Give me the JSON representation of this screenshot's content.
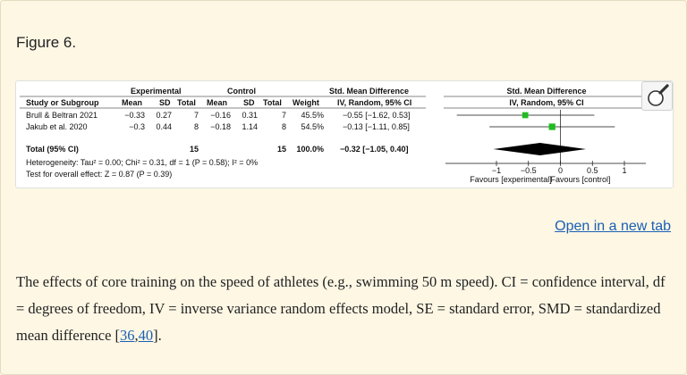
{
  "figure": {
    "title": "Figure 6.",
    "open_link": "Open in a new tab"
  },
  "forest": {
    "header_left": {
      "group_experimental": "Experimental",
      "group_control": "Control",
      "group_smd": "Std. Mean Difference",
      "col_study": "Study or Subgroup",
      "col_mean": "Mean",
      "col_sd": "SD",
      "col_total": "Total",
      "col_weight": "Weight",
      "col_method": "IV, Random, 95% CI"
    },
    "header_right": {
      "title": "Std. Mean Difference",
      "method": "IV, Random, 95% CI"
    },
    "studies": [
      {
        "name": "Brull & Beltran 2021",
        "e_mean": "−0.33",
        "e_sd": "0.27",
        "e_total": "7",
        "c_mean": "−0.16",
        "c_sd": "0.31",
        "c_total": "7",
        "weight": "45.5%",
        "ci": "−0.55 [−1.62, 0.53]"
      },
      {
        "name": "Jakub et al. 2020",
        "e_mean": "−0.3",
        "e_sd": "0.44",
        "e_total": "8",
        "c_mean": "−0.18",
        "c_sd": "1.14",
        "c_total": "8",
        "weight": "54.5%",
        "ci": "−0.13 [−1.11, 0.85]"
      }
    ],
    "total": {
      "label": "Total (95% CI)",
      "e_total": "15",
      "c_total": "15",
      "weight": "100.0%",
      "ci": "−0.32 [−1.05, 0.40]"
    },
    "heterogeneity": "Heterogeneity: Tau² = 0.00; Chi² = 0.31, df = 1 (P = 0.58); I² = 0%",
    "overall_effect": "Test for overall effect: Z = 0.87 (P = 0.39)",
    "axis": {
      "ticks": [
        "−1",
        "−0.5",
        "0",
        "0.5",
        "1"
      ],
      "favours_left": "Favours [experimental]",
      "favours_right": "Favours [control]"
    }
  },
  "chart_data": {
    "type": "forest",
    "studies": [
      {
        "name": "Brull & Beltran 2021",
        "smd": -0.55,
        "ci_low": -1.62,
        "ci_high": 0.53,
        "weight": 45.5
      },
      {
        "name": "Jakub et al. 2020",
        "smd": -0.13,
        "ci_low": -1.11,
        "ci_high": 0.85,
        "weight": 54.5
      }
    ],
    "pooled": {
      "smd": -0.32,
      "ci_low": -1.05,
      "ci_high": 0.4
    },
    "xlim": [
      -1,
      1
    ],
    "x_ticks": [
      -1,
      -0.5,
      0,
      0.5,
      1
    ],
    "colors": {
      "study_marker": "#22bb22",
      "pooled_marker": "#000000"
    }
  },
  "caption": {
    "text_before": "The effects of core training on the speed of athletes (e.g., swimming 50 m speed). CI = confidence interval, df = degrees of freedom, IV = inverse variance random effects model, SE = standard error, SMD = standardized mean difference [",
    "ref1": "36",
    "sep": ",",
    "ref2": "40",
    "text_after": "]."
  },
  "icons": {
    "zoom": "magnifier-icon"
  }
}
